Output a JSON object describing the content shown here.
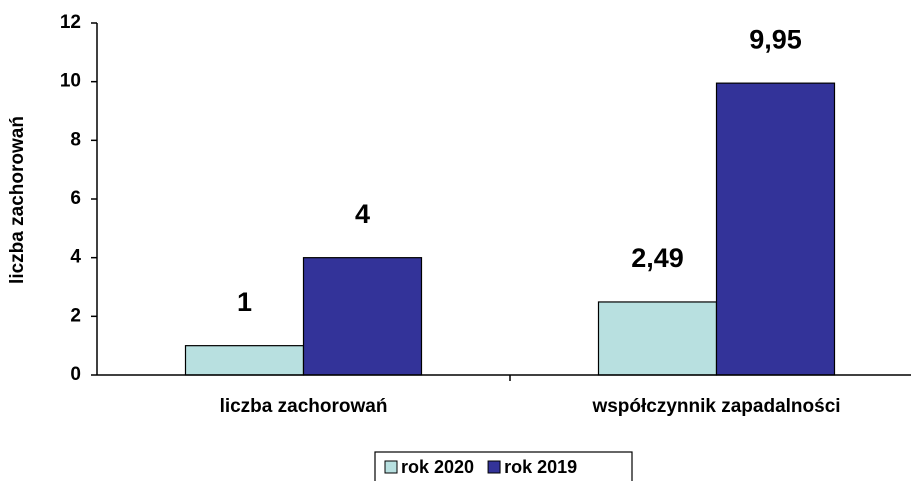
{
  "chart_data": {
    "type": "bar",
    "categories": [
      "liczba zachorowań",
      "współczynnik zapadalności"
    ],
    "y_label": "liczba zachorowań",
    "series": [
      {
        "name": "rok 2020",
        "color": "#b8e0e0",
        "values": [
          1,
          2.49
        ],
        "value_labels": [
          "1",
          "2,49"
        ]
      },
      {
        "name": "rok 2019",
        "color": "#333399",
        "values": [
          4,
          9.95
        ],
        "value_labels": [
          "4",
          "9,95"
        ]
      }
    ],
    "ylim": [
      0,
      12
    ],
    "yticks": [
      0,
      2,
      4,
      6,
      8,
      10,
      12
    ],
    "legend": "bottom"
  }
}
